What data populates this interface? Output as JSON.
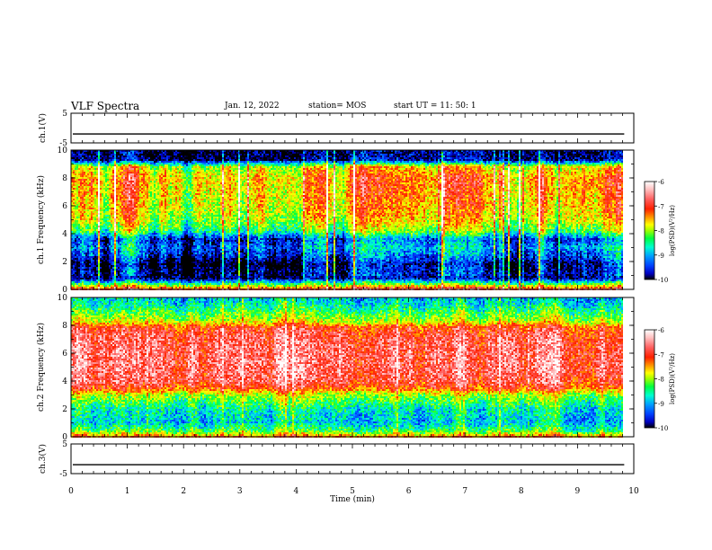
{
  "header": {
    "title": "VLF Spectra",
    "date": "Jan. 12, 2022",
    "station": "station= MOS",
    "start": "start UT = 11: 50: 1"
  },
  "chart_data": [
    {
      "type": "line",
      "name": "ch1-waveform",
      "ylabel": "ch.1(V)",
      "ylim": [
        -5,
        5
      ],
      "yticks": [
        "5",
        "-5"
      ],
      "xlim": [
        0,
        10
      ],
      "value": -2.0
    },
    {
      "type": "heatmap",
      "name": "ch1-spectrogram",
      "ylabel": "ch.1 Frequency (kHz)",
      "ylim": [
        0,
        10
      ],
      "yticks": [
        "0",
        "2",
        "4",
        "6",
        "8",
        "10"
      ],
      "xlim": [
        0,
        10
      ],
      "data_end_min": 9.8,
      "colorbar": {
        "label": "log(PSD)(V²/Hz)",
        "range": [
          -10,
          -6
        ],
        "ticks": [
          "-6",
          "-7",
          "-8",
          "-9",
          "-10"
        ]
      },
      "profile_freq_khz": [
        0,
        0.3,
        0.8,
        1.2,
        1.8,
        2.4,
        3.0,
        3.6,
        4.2,
        5.0,
        6.0,
        7.0,
        8.0,
        8.8,
        9.3,
        10
      ],
      "profile_log_psd": [
        -6.8,
        -8.0,
        -9.8,
        -9.7,
        -9.9,
        -9.4,
        -9.1,
        -9.4,
        -8.3,
        -7.8,
        -7.6,
        -7.5,
        -7.4,
        -7.8,
        -9.8,
        -9.9
      ]
    },
    {
      "type": "heatmap",
      "name": "ch2-spectrogram",
      "ylabel": "ch.2 Frequency (kHz)",
      "ylim": [
        0,
        10
      ],
      "yticks": [
        "0",
        "2",
        "4",
        "6",
        "8",
        "10"
      ],
      "xlim": [
        0,
        10
      ],
      "data_end_min": 9.8,
      "colorbar": {
        "label": "log(PSD)(V²/Hz)",
        "range": [
          -10,
          -6
        ],
        "ticks": [
          "-6",
          "-7",
          "-8",
          "-9",
          "-10"
        ]
      },
      "profile_freq_khz": [
        0,
        0.4,
        1.0,
        2.0,
        3.0,
        3.5,
        4.0,
        5.0,
        6.0,
        7.0,
        7.8,
        8.3,
        9.0,
        9.6,
        10
      ],
      "profile_log_psd": [
        -7.2,
        -8.2,
        -8.8,
        -8.6,
        -7.9,
        -7.0,
        -6.7,
        -6.6,
        -6.6,
        -6.7,
        -6.9,
        -7.8,
        -8.3,
        -8.7,
        -8.8
      ]
    },
    {
      "type": "line",
      "name": "ch3-waveform",
      "ylabel": "ch.3(V)",
      "ylim": [
        -5,
        5
      ],
      "yticks": [
        "5",
        "-5"
      ],
      "xlim": [
        0,
        10
      ],
      "value": -2.0
    }
  ],
  "xaxis": {
    "label": "Time (min)",
    "ticks": [
      "0",
      "1",
      "2",
      "3",
      "4",
      "5",
      "6",
      "7",
      "8",
      "9",
      "10"
    ]
  },
  "colormap": [
    "#000000",
    "#0000c0",
    "#0040ff",
    "#00a0ff",
    "#00ffd0",
    "#00ff40",
    "#a0ff00",
    "#ffff00",
    "#ff9000",
    "#ff2000",
    "#ff6060",
    "#ffc0c0",
    "#ffffff"
  ]
}
